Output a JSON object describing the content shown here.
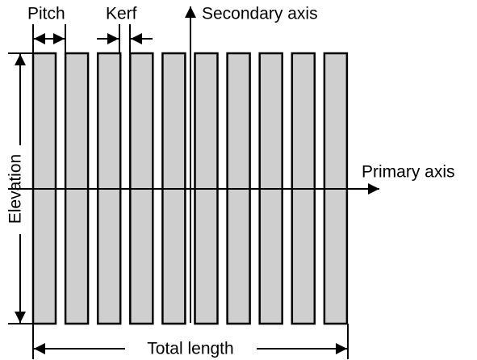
{
  "labels": {
    "pitch": "Pitch",
    "kerf": "Kerf",
    "secondary_axis": "Secondary axis",
    "primary_axis": "Primary axis",
    "elevation": "Elevation",
    "total_length": "Total length"
  }
}
